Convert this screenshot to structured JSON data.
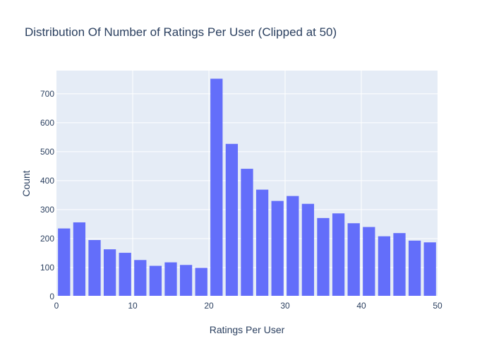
{
  "chart_data": {
    "type": "bar",
    "title": "Distribution Of Number of Ratings Per User (Clipped at 50)",
    "xlabel": "Ratings Per User",
    "ylabel": "Count",
    "xlim": [
      0,
      50
    ],
    "ylim": [
      0,
      780
    ],
    "x_ticks": [
      0,
      10,
      20,
      30,
      40,
      50
    ],
    "y_ticks": [
      0,
      100,
      200,
      300,
      400,
      500,
      600,
      700
    ],
    "bin_width": 2,
    "bins": [
      {
        "start": 0,
        "end": 2,
        "value": 235
      },
      {
        "start": 2,
        "end": 4,
        "value": 256
      },
      {
        "start": 4,
        "end": 6,
        "value": 195
      },
      {
        "start": 6,
        "end": 8,
        "value": 163
      },
      {
        "start": 8,
        "end": 10,
        "value": 151
      },
      {
        "start": 10,
        "end": 12,
        "value": 126
      },
      {
        "start": 12,
        "end": 14,
        "value": 106
      },
      {
        "start": 14,
        "end": 16,
        "value": 118
      },
      {
        "start": 16,
        "end": 18,
        "value": 109
      },
      {
        "start": 18,
        "end": 20,
        "value": 99
      },
      {
        "start": 20,
        "end": 22,
        "value": 752
      },
      {
        "start": 22,
        "end": 24,
        "value": 527
      },
      {
        "start": 24,
        "end": 26,
        "value": 441
      },
      {
        "start": 26,
        "end": 28,
        "value": 369
      },
      {
        "start": 28,
        "end": 30,
        "value": 330
      },
      {
        "start": 30,
        "end": 32,
        "value": 347
      },
      {
        "start": 32,
        "end": 34,
        "value": 320
      },
      {
        "start": 34,
        "end": 36,
        "value": 271
      },
      {
        "start": 36,
        "end": 38,
        "value": 287
      },
      {
        "start": 38,
        "end": 40,
        "value": 253
      },
      {
        "start": 40,
        "end": 42,
        "value": 240
      },
      {
        "start": 42,
        "end": 44,
        "value": 208
      },
      {
        "start": 44,
        "end": 46,
        "value": 219
      },
      {
        "start": 46,
        "end": 48,
        "value": 193
      },
      {
        "start": 48,
        "end": 50,
        "value": 187
      }
    ],
    "grid": true,
    "colors": {
      "bar": "#636efa",
      "plot_background": "#e5ecf6",
      "gridline": "#ffffff",
      "text": "#2a3f5f"
    }
  }
}
